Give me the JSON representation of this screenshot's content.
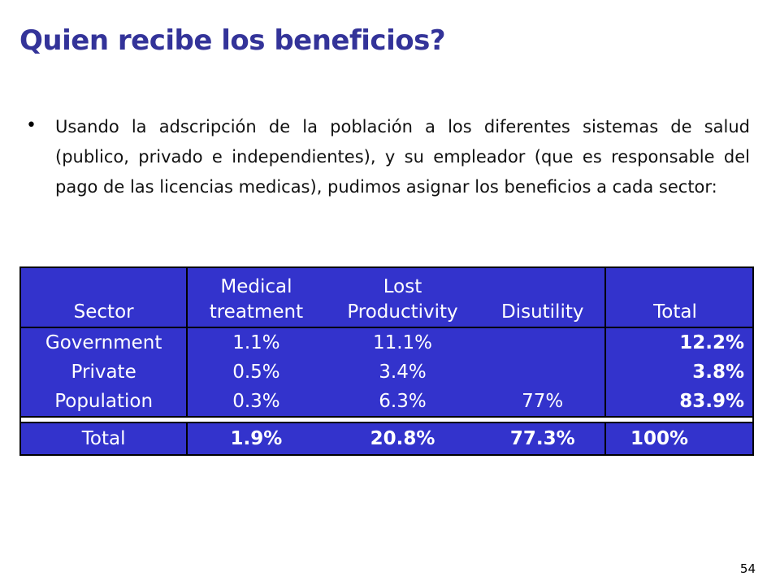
{
  "slide": {
    "title": "Quien recibe los beneficios?",
    "bullet": "Usando la adscripción de la población a los diferentes sistemas de salud (publico, privado e independientes), y su empleador (que es responsable del pago de las licencias medicas), pudimos asignar los beneficios a cada sector:",
    "page_number": "54"
  },
  "table": {
    "headers": {
      "sector": "Sector",
      "medical_line1": "Medical",
      "medical_line2": "treatment",
      "lost_line1": "Lost",
      "lost_line2": "Productivity",
      "disutility": "Disutility",
      "total": "Total"
    },
    "rows": [
      {
        "sector": "Government",
        "medical": "1.1%",
        "lost": "11.1%",
        "disutility": "",
        "total": "12.2%"
      },
      {
        "sector": "Private",
        "medical": "0.5%",
        "lost": "3.4%",
        "disutility": "",
        "total": "3.8%"
      },
      {
        "sector": "Population",
        "medical": "0.3%",
        "lost": "6.3%",
        "disutility": "77%",
        "total": "83.9%"
      }
    ],
    "total_row": {
      "sector": "Total",
      "medical": "1.9%",
      "lost": "20.8%",
      "disutility": "77.3%",
      "total": "100%"
    },
    "colors": {
      "fill": "#3333cc",
      "title": "#333399"
    }
  }
}
